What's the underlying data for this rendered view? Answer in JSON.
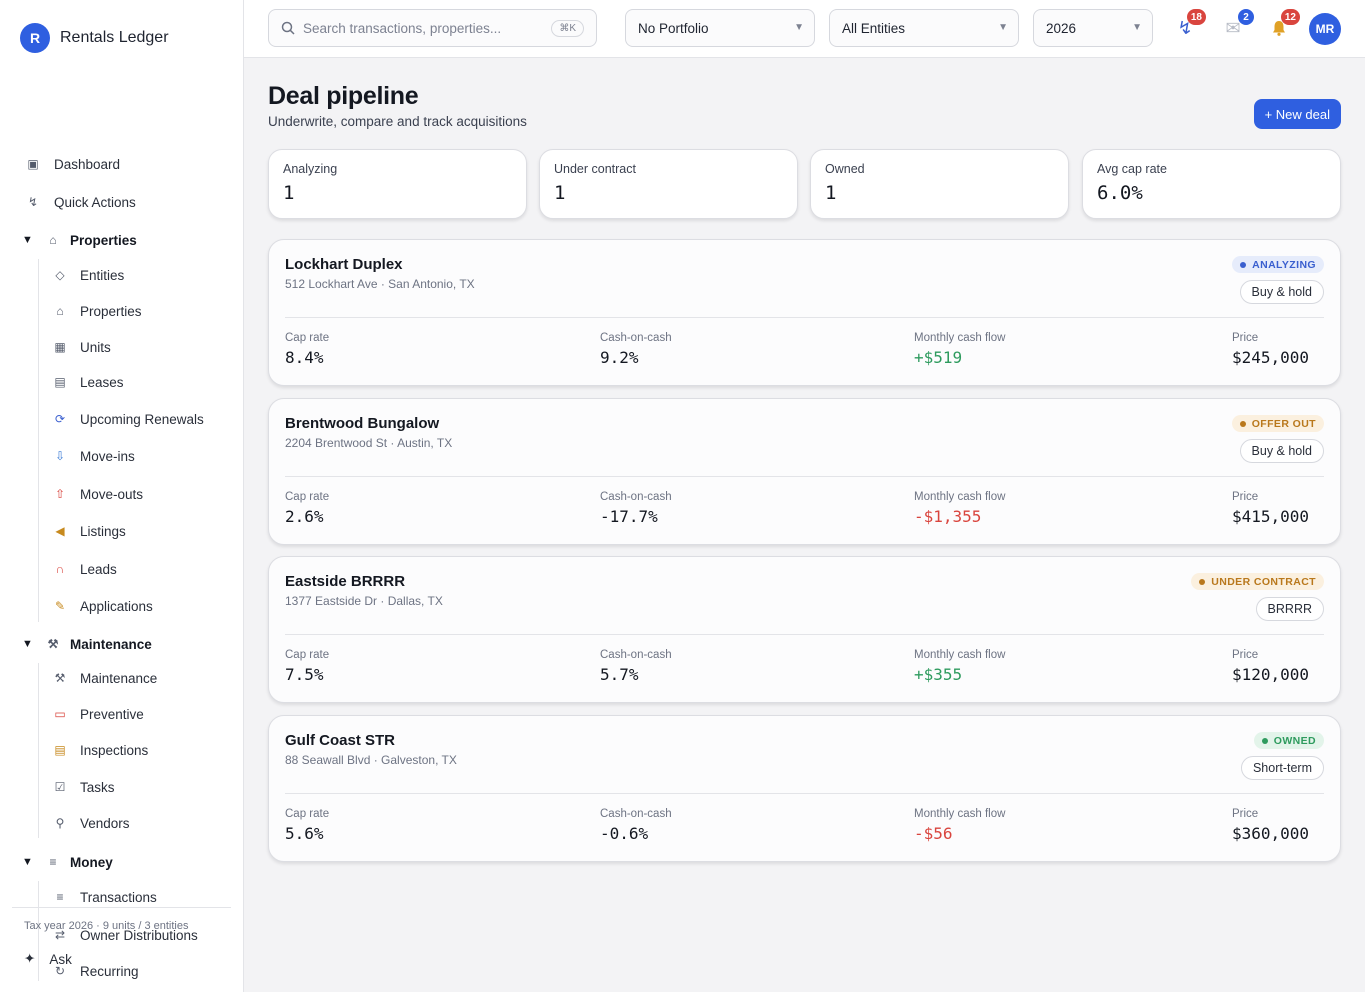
{
  "app": {
    "logo_letter": "R",
    "name": "Rentals Ledger"
  },
  "sidebar": {
    "top_items": [
      {
        "label": "Dashboard",
        "icon": "dashboard-icon"
      },
      {
        "label": "Quick Actions",
        "icon": "lightning-icon"
      }
    ],
    "groups": [
      {
        "label": "Properties",
        "icon": "house-icon",
        "items": [
          {
            "label": "Entities",
            "icon": "diamond-icon"
          },
          {
            "label": "Properties",
            "icon": "house-icon"
          },
          {
            "label": "Units",
            "icon": "grid-icon"
          },
          {
            "label": "Leases",
            "icon": "document-icon"
          },
          {
            "label": "Upcoming Renewals",
            "icon": "renew-icon"
          },
          {
            "label": "Move-ins",
            "icon": "inbox-in-icon"
          },
          {
            "label": "Move-outs",
            "icon": "inbox-out-icon"
          },
          {
            "label": "Listings",
            "icon": "megaphone-icon"
          },
          {
            "label": "Leads",
            "icon": "magnet-icon"
          },
          {
            "label": "Applications",
            "icon": "memo-icon"
          }
        ]
      },
      {
        "label": "Maintenance",
        "icon": "tools-icon",
        "items": [
          {
            "label": "Maintenance",
            "icon": "tools-icon"
          },
          {
            "label": "Preventive",
            "icon": "calendar-icon"
          },
          {
            "label": "Inspections",
            "icon": "clipboard-icon"
          },
          {
            "label": "Tasks",
            "icon": "checkbox-icon"
          },
          {
            "label": "Vendors",
            "icon": "wrench-icon"
          }
        ]
      },
      {
        "label": "Money",
        "icon": "list-icon",
        "items": [
          {
            "label": "Transactions",
            "icon": "list-icon"
          },
          {
            "label": "Owner Distributions",
            "icon": "transfer-icon"
          },
          {
            "label": "Recurring",
            "icon": "recurring-icon"
          }
        ]
      }
    ],
    "footer": "Tax year 2026 · 9 units / 3 entities",
    "ask_label": "Ask"
  },
  "topbar": {
    "search_placeholder": "Search transactions, properties...",
    "search_shortcut": "⌘K",
    "portfolio": "No Portfolio",
    "entities": "All Entities",
    "year": "2026",
    "activity_count": "18",
    "messages_count": "2",
    "notifications_count": "12",
    "user_initials": "MR",
    "colors": {
      "activity_badge": "#d9453e",
      "messages_badge": "#2f5fe0",
      "notifications_badge": "#d9453e"
    }
  },
  "page": {
    "title": "Deal pipeline",
    "subtitle": "Underwrite, compare and track acquisitions",
    "new_deal_label": "+ New deal"
  },
  "kpis": [
    {
      "label": "Analyzing",
      "value": "1"
    },
    {
      "label": "Under contract",
      "value": "1"
    },
    {
      "label": "Owned",
      "value": "1"
    },
    {
      "label": "Avg cap rate",
      "value": "6.0%"
    }
  ],
  "metric_labels": {
    "cap_rate": "Cap rate",
    "coc": "Cash-on-cash",
    "cash_flow": "Monthly cash flow",
    "price": "Price"
  },
  "deals": [
    {
      "name": "Lockhart Duplex",
      "address": "512 Lockhart Ave · San Antonio, TX",
      "status": "ANALYZING",
      "status_colors": {
        "bg": "#e6ecfb",
        "fg": "#3a5fcf",
        "dot": "#3a5fcf"
      },
      "strategy": "Buy & hold",
      "cap_rate": "8.4%",
      "coc": "9.2%",
      "cash_flow": "+$519",
      "cash_flow_sign": "positive",
      "price": "$245,000"
    },
    {
      "name": "Brentwood Bungalow",
      "address": "2204 Brentwood St · Austin, TX",
      "status": "OFFER OUT",
      "status_colors": {
        "bg": "#fbf0df",
        "fg": "#b9781c",
        "dot": "#b9781c"
      },
      "strategy": "Buy & hold",
      "cap_rate": "2.6%",
      "coc": "-17.7%",
      "cash_flow": "-$1,355",
      "cash_flow_sign": "negative",
      "price": "$415,000"
    },
    {
      "name": "Eastside BRRRR",
      "address": "1377 Eastside Dr · Dallas, TX",
      "status": "UNDER CONTRACT",
      "status_colors": {
        "bg": "#fbf0df",
        "fg": "#b9781c",
        "dot": "#b9781c"
      },
      "strategy": "BRRRR",
      "cap_rate": "7.5%",
      "coc": "5.7%",
      "cash_flow": "+$355",
      "cash_flow_sign": "positive",
      "price": "$120,000"
    },
    {
      "name": "Gulf Coast STR",
      "address": "88 Seawall Blvd · Galveston, TX",
      "status": "OWNED",
      "status_colors": {
        "bg": "#e3f4ea",
        "fg": "#2e9b5e",
        "dot": "#2e9b5e"
      },
      "strategy": "Short-term",
      "cap_rate": "5.6%",
      "coc": "-0.6%",
      "cash_flow": "-$56",
      "cash_flow_sign": "negative",
      "price": "$360,000"
    }
  ]
}
